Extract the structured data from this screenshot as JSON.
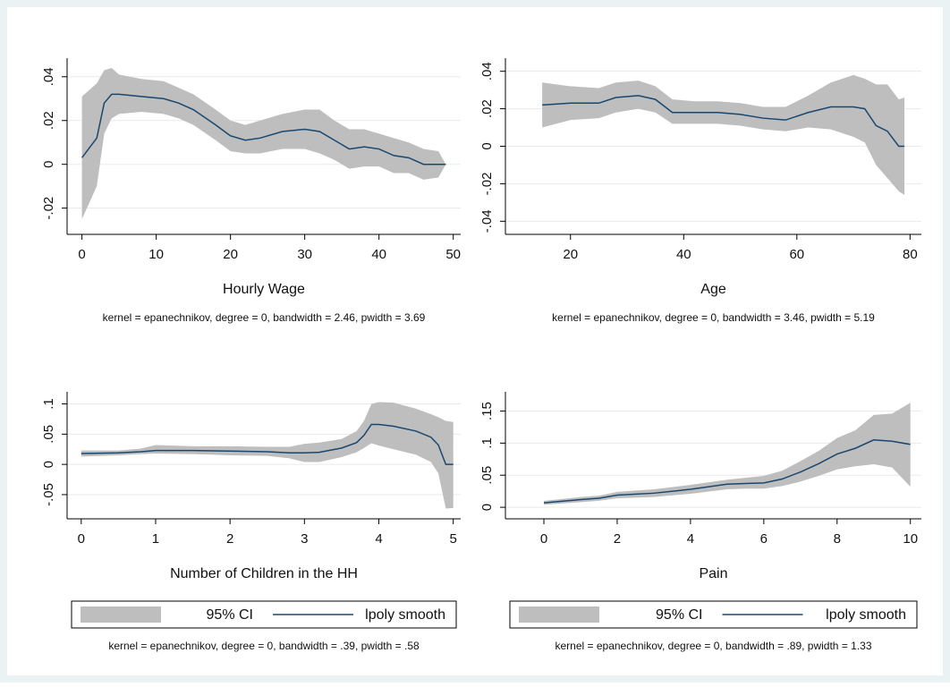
{
  "chart_data": [
    {
      "type": "line",
      "x_label": "Hourly Wage",
      "note": "kernel = epanechnikov, degree = 0, bandwidth = 2.46, pwidth = 3.69",
      "x": [
        0,
        2,
        3,
        4,
        5,
        8,
        11,
        13,
        15,
        18,
        20,
        22,
        24,
        27,
        30,
        32,
        34,
        36,
        38,
        40,
        42,
        44,
        46,
        48,
        49
      ],
      "series": [
        {
          "color": "#bebebe",
          "upper": [
            0.031,
            0.037,
            0.043,
            0.044,
            0.041,
            0.039,
            0.038,
            0.035,
            0.032,
            0.025,
            0.02,
            0.018,
            0.02,
            0.023,
            0.025,
            0.025,
            0.02,
            0.016,
            0.016,
            0.014,
            0.012,
            0.01,
            0.007,
            0.006,
            0.0
          ],
          "lower": [
            -0.025,
            -0.01,
            0.014,
            0.021,
            0.023,
            0.024,
            0.023,
            0.021,
            0.018,
            0.011,
            0.006,
            0.005,
            0.005,
            0.007,
            0.007,
            0.005,
            0.002,
            -0.002,
            -0.001,
            -0.001,
            -0.004,
            -0.004,
            -0.007,
            -0.006,
            0.0
          ]
        },
        {
          "color": "#1a476f",
          "values": [
            0.003,
            0.012,
            0.028,
            0.032,
            0.032,
            0.031,
            0.03,
            0.028,
            0.025,
            0.018,
            0.013,
            0.011,
            0.012,
            0.015,
            0.016,
            0.015,
            0.011,
            0.007,
            0.008,
            0.007,
            0.004,
            0.003,
            0.0,
            0.0,
            0.0
          ]
        }
      ],
      "xlim": [
        -2,
        51
      ],
      "ylim": [
        -0.032,
        0.0485
      ],
      "xticks": [
        0,
        10,
        20,
        30,
        40,
        50
      ],
      "yticks": [
        {
          "value": -0.02,
          "label": "-.02"
        },
        0,
        {
          "value": 0.02,
          "label": ".02"
        },
        {
          "value": 0.04,
          "label": ".04"
        }
      ],
      "grid": true,
      "legend": false
    },
    {
      "type": "line",
      "x_label": "Age",
      "note": "kernel = epanechnikov, degree = 0, bandwidth = 3.46, pwidth = 5.19",
      "x": [
        15,
        20,
        25,
        28,
        32,
        35,
        38,
        42,
        46,
        50,
        54,
        58,
        62,
        66,
        70,
        72,
        74,
        76,
        78,
        79
      ],
      "series": [
        {
          "color": "#bebebe",
          "upper": [
            0.034,
            0.032,
            0.031,
            0.034,
            0.035,
            0.032,
            0.025,
            0.024,
            0.024,
            0.023,
            0.021,
            0.021,
            0.027,
            0.034,
            0.038,
            0.036,
            0.033,
            0.033,
            0.025,
            0.026
          ],
          "lower": [
            0.01,
            0.014,
            0.015,
            0.018,
            0.02,
            0.018,
            0.012,
            0.012,
            0.012,
            0.011,
            0.009,
            0.008,
            0.01,
            0.009,
            0.005,
            0.002,
            -0.01,
            -0.017,
            -0.024,
            -0.026
          ]
        },
        {
          "color": "#1a476f",
          "values": [
            0.022,
            0.023,
            0.023,
            0.026,
            0.027,
            0.025,
            0.018,
            0.018,
            0.018,
            0.017,
            0.015,
            0.014,
            0.018,
            0.021,
            0.021,
            0.02,
            0.011,
            0.008,
            0.0,
            0.0
          ]
        }
      ],
      "xlim": [
        8.5,
        82
      ],
      "ylim": [
        -0.047,
        0.047
      ],
      "xticks": [
        20,
        40,
        60,
        80
      ],
      "yticks": [
        {
          "value": -0.04,
          "label": "-.04"
        },
        {
          "value": -0.02,
          "label": "-.02"
        },
        0,
        {
          "value": 0.02,
          "label": ".02"
        },
        {
          "value": 0.04,
          "label": ".04"
        }
      ],
      "grid": true,
      "legend": false
    },
    {
      "type": "line",
      "x_label": "Number of Children in the HH",
      "note": "kernel = epanechnikov, degree = 0, bandwidth = .39, pwidth = .58",
      "x": [
        0,
        0.5,
        0.8,
        1,
        1.5,
        2,
        2.5,
        2.8,
        3,
        3.2,
        3.5,
        3.7,
        3.8,
        3.9,
        4,
        4.2,
        4.5,
        4.7,
        4.8,
        4.9,
        5
      ],
      "series": [
        {
          "name": "95% CI",
          "color": "#bebebe",
          "upper": [
            0.023,
            0.023,
            0.026,
            0.032,
            0.03,
            0.03,
            0.029,
            0.029,
            0.034,
            0.036,
            0.042,
            0.055,
            0.072,
            0.1,
            0.103,
            0.102,
            0.092,
            0.083,
            0.078,
            0.072,
            0.07
          ],
          "lower": [
            0.013,
            0.015,
            0.017,
            0.018,
            0.017,
            0.015,
            0.014,
            0.01,
            0.004,
            0.004,
            0.012,
            0.02,
            0.027,
            0.035,
            0.031,
            0.025,
            0.016,
            0.004,
            -0.015,
            -0.073,
            -0.072
          ]
        },
        {
          "name": "lpoly smooth",
          "color": "#1a476f",
          "values": [
            0.018,
            0.019,
            0.021,
            0.023,
            0.023,
            0.022,
            0.021,
            0.019,
            0.019,
            0.02,
            0.027,
            0.036,
            0.048,
            0.066,
            0.066,
            0.063,
            0.055,
            0.045,
            0.032,
            0.0,
            0.0
          ]
        }
      ],
      "xlim": [
        -0.19,
        5.1
      ],
      "ylim": [
        -0.09,
        0.12
      ],
      "xticks": [
        0,
        1,
        2,
        3,
        4,
        5
      ],
      "yticks": [
        {
          "value": -0.05,
          "label": "-.05"
        },
        0,
        {
          "value": 0.05,
          "label": ".05"
        },
        {
          "value": 0.1,
          "label": ".1"
        }
      ],
      "grid": true,
      "legend": true
    },
    {
      "type": "line",
      "x_label": "Pain",
      "note": "kernel = epanechnikov, degree = 0, bandwidth = .89, pwidth = 1.33",
      "x": [
        0,
        1,
        1.5,
        2,
        3,
        4,
        5,
        5.5,
        6,
        6.5,
        7,
        7.5,
        8,
        8.5,
        9,
        9.5,
        10
      ],
      "series": [
        {
          "name": "95% CI",
          "color": "#bebebe",
          "upper": [
            0.01,
            0.016,
            0.018,
            0.024,
            0.028,
            0.035,
            0.043,
            0.046,
            0.049,
            0.057,
            0.072,
            0.088,
            0.108,
            0.12,
            0.144,
            0.146,
            0.163
          ],
          "lower": [
            0.004,
            0.008,
            0.01,
            0.014,
            0.016,
            0.021,
            0.028,
            0.029,
            0.029,
            0.033,
            0.04,
            0.049,
            0.059,
            0.064,
            0.067,
            0.062,
            0.032
          ]
        },
        {
          "name": "lpoly smooth",
          "color": "#1a476f",
          "values": [
            0.007,
            0.012,
            0.014,
            0.019,
            0.022,
            0.028,
            0.036,
            0.037,
            0.038,
            0.044,
            0.055,
            0.068,
            0.083,
            0.092,
            0.105,
            0.103,
            0.098
          ]
        }
      ],
      "xlim": [
        -1.05,
        10.3
      ],
      "ylim": [
        -0.018,
        0.18
      ],
      "xticks": [
        0,
        2,
        4,
        6,
        8,
        10
      ],
      "yticks": [
        0,
        {
          "value": 0.05,
          "label": ".05"
        },
        {
          "value": 0.1,
          "label": ".1"
        },
        {
          "value": 0.15,
          "label": ".15"
        }
      ],
      "grid": true,
      "legend": true
    }
  ]
}
